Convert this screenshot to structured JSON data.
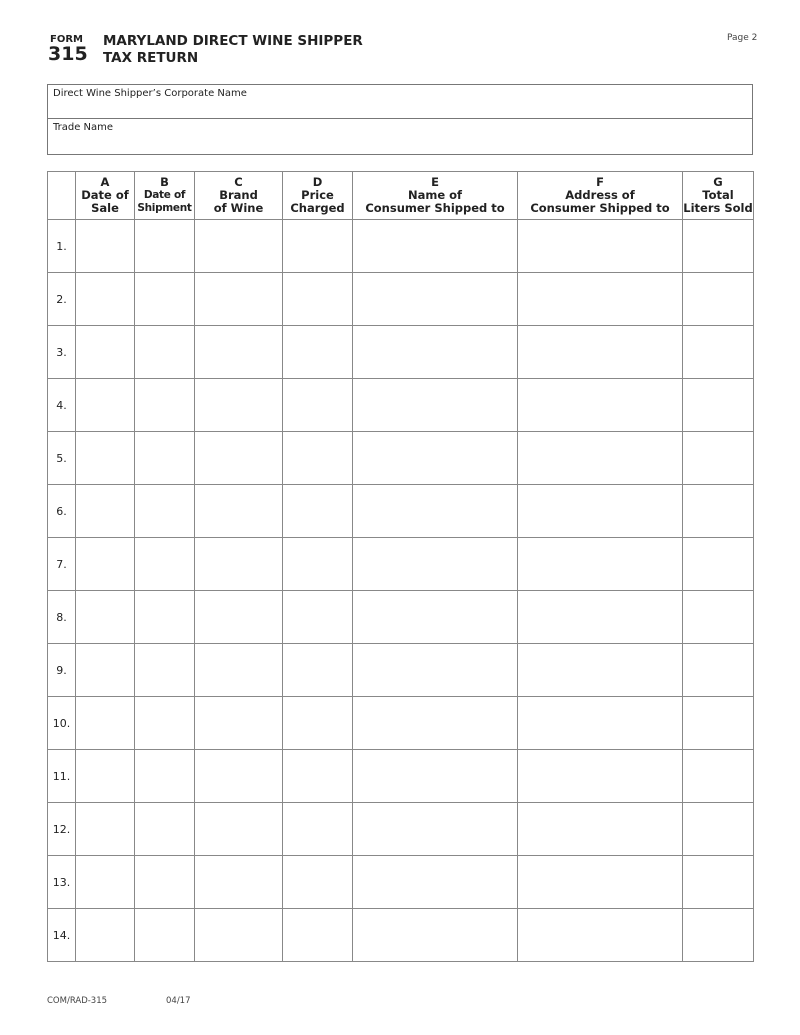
{
  "header": {
    "form_label": "FORM",
    "form_number": "315",
    "title_line1": "MARYLAND DIRECT WINE SHIPPER",
    "title_line2": "TAX RETURN",
    "page": "Page 2"
  },
  "fields": {
    "corporate_name_label": "Direct Wine Shipper’s Corporate Name",
    "trade_name_label": "Trade Name"
  },
  "table": {
    "columns": [
      {
        "letter": "A",
        "line1": "Date of",
        "line2": "Sale"
      },
      {
        "letter": "B",
        "line1": "Date of",
        "line2": "Shipment"
      },
      {
        "letter": "C",
        "line1": "Brand",
        "line2": "of Wine"
      },
      {
        "letter": "D",
        "line1": "Price",
        "line2": "Charged"
      },
      {
        "letter": "E",
        "line1": "Name of",
        "line2": "Consumer Shipped to"
      },
      {
        "letter": "F",
        "line1": "Address of",
        "line2": "Consumer Shipped to"
      },
      {
        "letter": "G",
        "line1": "Total",
        "line2": "Liters Sold"
      }
    ],
    "rows": [
      "1.",
      "2.",
      "3.",
      "4.",
      "5.",
      "6.",
      "7.",
      "8.",
      "9.",
      "10.",
      "11.",
      "12.",
      "13.",
      "14."
    ]
  },
  "footer": {
    "form_code": "COM/RAD-315",
    "revision": "04/17"
  }
}
